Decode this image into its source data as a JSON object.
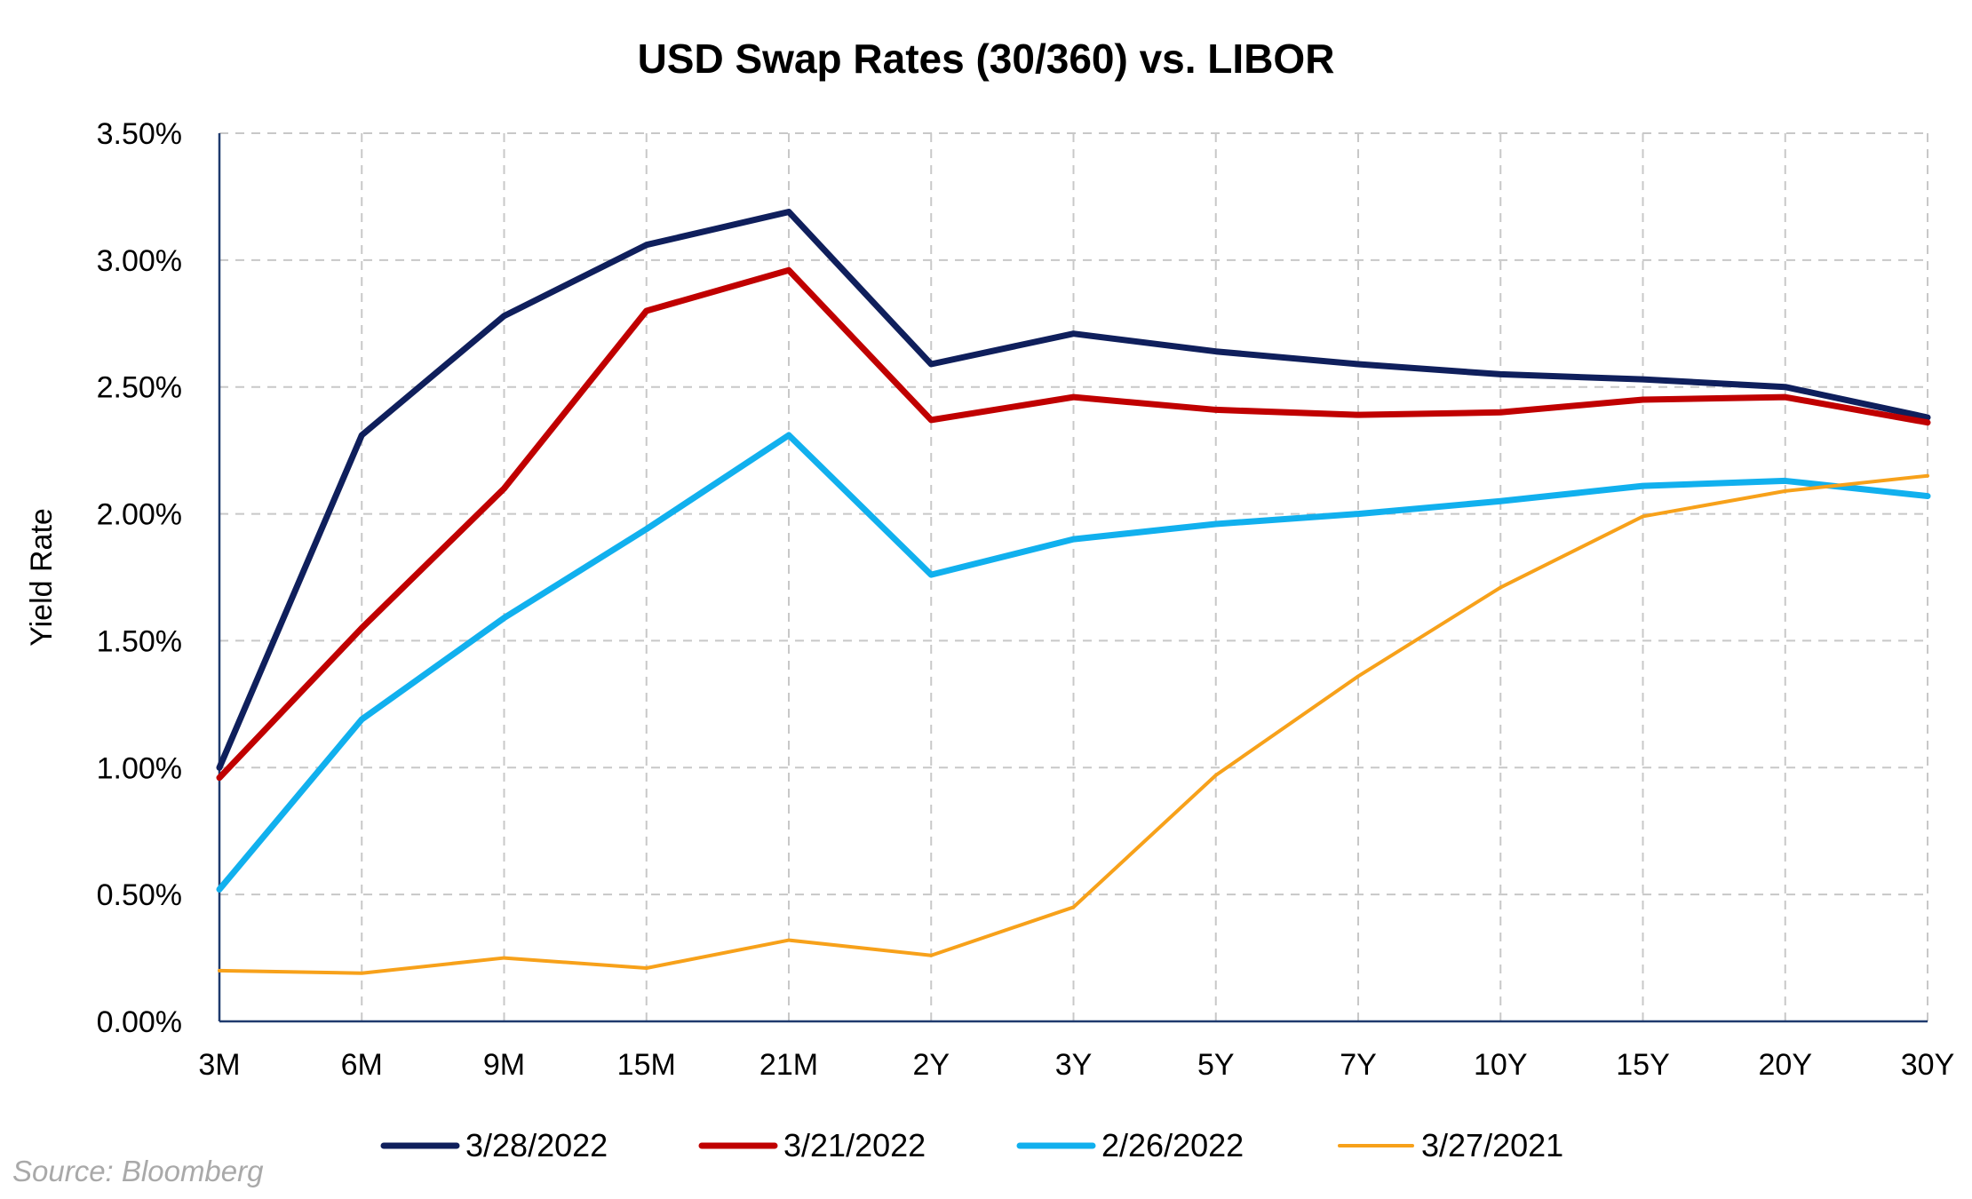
{
  "chart_data": {
    "type": "line",
    "title": "USD Swap Rates (30/360) vs. LIBOR",
    "xlabel": "",
    "ylabel": "Yield Rate",
    "categories": [
      "3M",
      "6M",
      "9M",
      "15M",
      "21M",
      "2Y",
      "3Y",
      "5Y",
      "7Y",
      "10Y",
      "15Y",
      "20Y",
      "30Y"
    ],
    "ylim": [
      0,
      3.5
    ],
    "yticks": [
      "0.00%",
      "0.50%",
      "1.00%",
      "1.50%",
      "2.00%",
      "2.50%",
      "3.00%",
      "3.50%"
    ],
    "grid": true,
    "legend_position": "bottom",
    "series": [
      {
        "name": "3/28/2022",
        "color": "#0f1f5c",
        "values": [
          1.0,
          2.31,
          2.78,
          3.06,
          3.19,
          2.59,
          2.71,
          2.64,
          2.59,
          2.55,
          2.53,
          2.5,
          2.38
        ]
      },
      {
        "name": "3/21/2022",
        "color": "#c00000",
        "values": [
          0.96,
          1.55,
          2.1,
          2.8,
          2.96,
          2.37,
          2.46,
          2.41,
          2.39,
          2.4,
          2.45,
          2.46,
          2.36
        ]
      },
      {
        "name": "2/26/2022",
        "color": "#11b0ee",
        "values": [
          0.52,
          1.19,
          1.59,
          1.94,
          2.31,
          1.76,
          1.9,
          1.96,
          2.0,
          2.05,
          2.11,
          2.13,
          2.07
        ]
      },
      {
        "name": "3/27/2021",
        "color": "#f7a11a",
        "values": [
          0.2,
          0.19,
          0.25,
          0.21,
          0.32,
          0.26,
          0.45,
          0.97,
          1.36,
          1.71,
          1.99,
          2.09,
          2.15
        ]
      }
    ]
  },
  "source": "Source: Bloomberg"
}
